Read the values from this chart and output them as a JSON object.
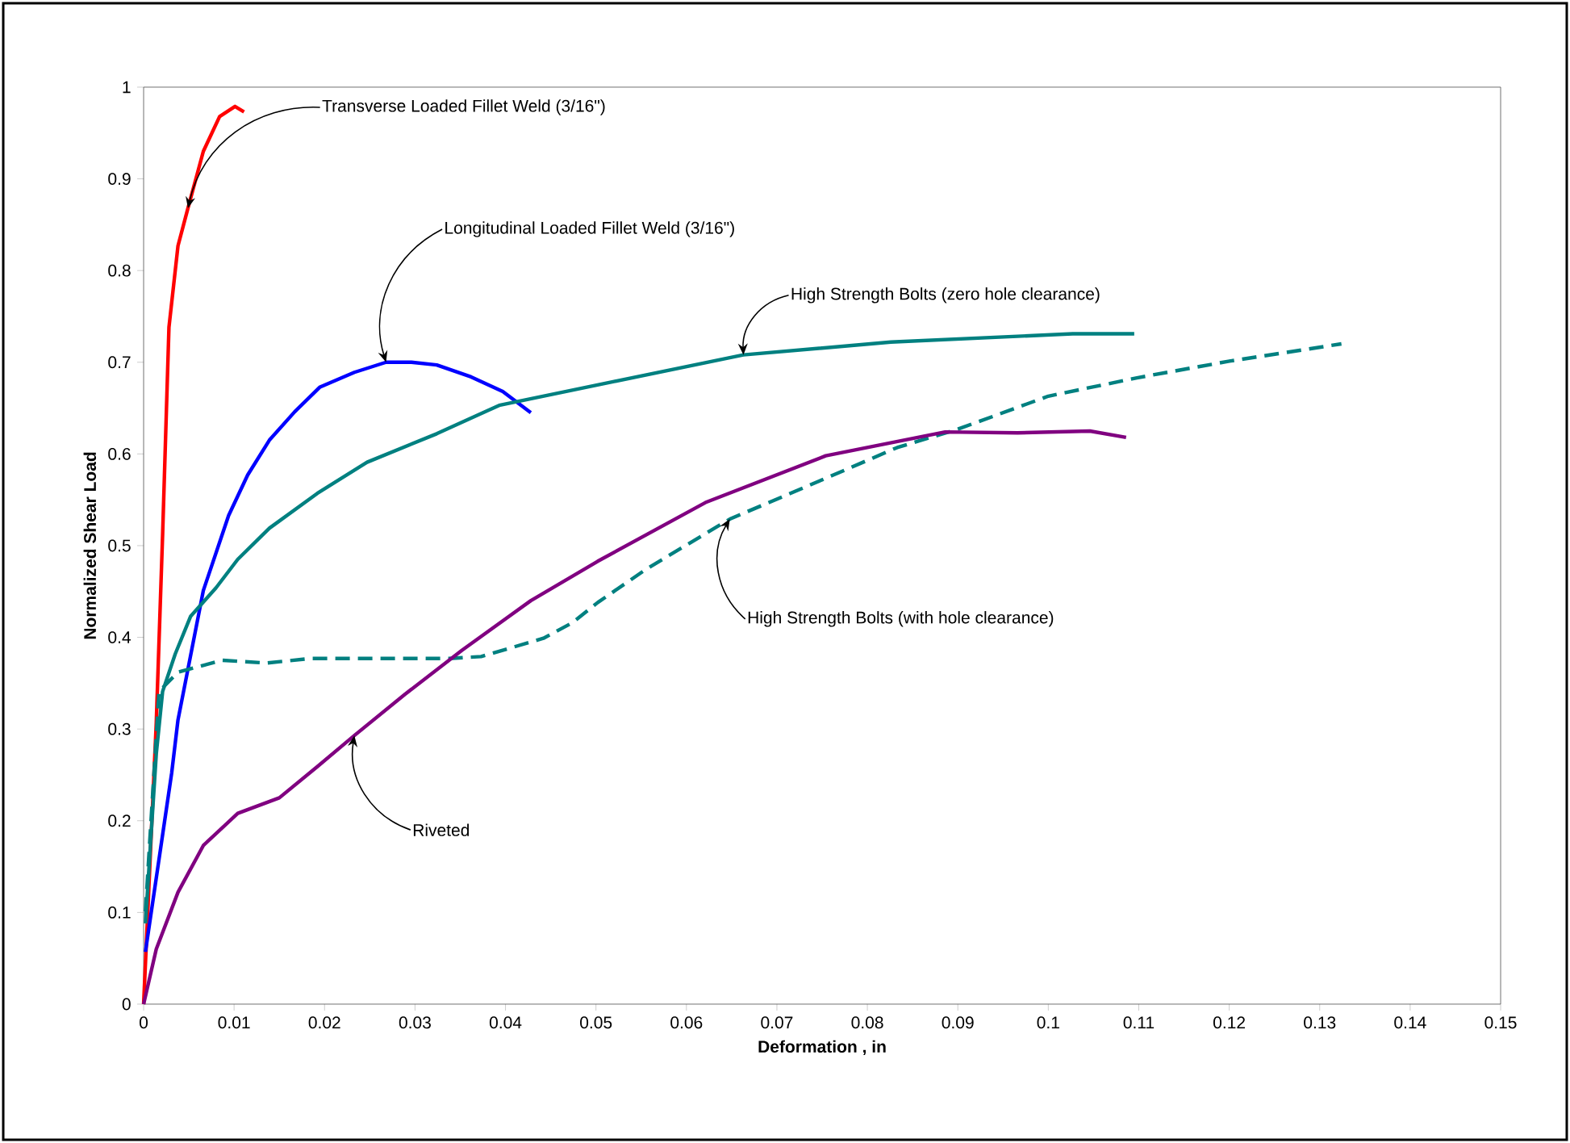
{
  "chart_data": {
    "type": "line",
    "xlabel": "Deformation , in",
    "ylabel": "Normalized Shear Load",
    "xlim": [
      0,
      0.15
    ],
    "ylim": [
      0,
      1
    ],
    "xticks": [
      0,
      0.01,
      0.02,
      0.03,
      0.04,
      0.05,
      0.06,
      0.07,
      0.08,
      0.09,
      0.1,
      0.11,
      0.12,
      0.13,
      0.14,
      0.15
    ],
    "yticks": [
      0,
      0.1,
      0.2,
      0.3,
      0.4,
      0.5,
      0.6,
      0.7,
      0.8,
      0.9,
      1
    ],
    "marker": "none",
    "series": [
      {
        "color": "#ff0000",
        "line_style": "solid",
        "x": [
          0,
          0.0014,
          0.0021,
          0.0028,
          0.0038,
          0.0049,
          0.0066,
          0.0084,
          0.0101,
          0.0111
        ],
        "values": [
          0,
          0.307,
          0.512,
          0.738,
          0.827,
          0.868,
          0.93,
          0.968,
          0.979,
          0.973
        ]
      },
      {
        "color": "#0000ff",
        "line_style": "solid",
        "x": [
          0.0002,
          0.0031,
          0.0038,
          0.0066,
          0.0094,
          0.0115,
          0.0139,
          0.0167,
          0.0195,
          0.0233,
          0.0268,
          0.0296,
          0.0324,
          0.0362,
          0.0397,
          0.0428
        ],
        "values": [
          0.057,
          0.252,
          0.31,
          0.451,
          0.533,
          0.577,
          0.615,
          0.646,
          0.673,
          0.689,
          0.7,
          0.7,
          0.697,
          0.684,
          0.668,
          0.645
        ]
      },
      {
        "color": "#008080",
        "line_style": "solid",
        "x": [
          0.0002,
          0.0014,
          0.0021,
          0.0035,
          0.0052,
          0.008,
          0.0104,
          0.0139,
          0.0192,
          0.0247,
          0.0324,
          0.0393,
          0.052,
          0.0663,
          0.0826,
          0.1027,
          0.1095
        ],
        "values": [
          0.088,
          0.273,
          0.341,
          0.382,
          0.423,
          0.454,
          0.485,
          0.519,
          0.557,
          0.591,
          0.622,
          0.653,
          0.679,
          0.708,
          0.722,
          0.731,
          0.731
        ]
      },
      {
        "color": "#008080",
        "line_style": "dashed",
        "x": [
          0.0002,
          0.0017,
          0.0038,
          0.0087,
          0.0136,
          0.0185,
          0.0261,
          0.0338,
          0.0373,
          0.0442,
          0.0474,
          0.0502,
          0.0555,
          0.0648,
          0.0734,
          0.0833,
          0.09,
          0.1,
          0.1098,
          0.1199,
          0.1324
        ],
        "values": [
          0.101,
          0.341,
          0.362,
          0.375,
          0.372,
          0.377,
          0.377,
          0.377,
          0.379,
          0.399,
          0.416,
          0.438,
          0.474,
          0.529,
          0.565,
          0.607,
          0.627,
          0.663,
          0.683,
          0.701,
          0.72
        ]
      },
      {
        "color": "#800080",
        "line_style": "solid",
        "x": [
          0,
          0.0014,
          0.0038,
          0.0066,
          0.0104,
          0.015,
          0.0192,
          0.0233,
          0.0289,
          0.0352,
          0.0428,
          0.0502,
          0.0621,
          0.0754,
          0.0886,
          0.0966,
          0.1046,
          0.1086
        ],
        "values": [
          0,
          0.06,
          0.122,
          0.173,
          0.208,
          0.225,
          0.259,
          0.293,
          0.338,
          0.386,
          0.44,
          0.483,
          0.547,
          0.598,
          0.624,
          0.623,
          0.625,
          0.618
        ]
      }
    ],
    "annotations": [
      {
        "text": "Transverse Loaded Fillet Weld (3/16\")",
        "x": 0.0049,
        "y": 0.868
      },
      {
        "text": "Longitudinal Loaded Fillet Weld (3/16\")",
        "x": 0.0268,
        "y": 0.7
      },
      {
        "text": "High Strength Bolts (zero hole clearance)",
        "x": 0.0663,
        "y": 0.708
      },
      {
        "text": "High Strength Bolts (with hole clearance)",
        "x": 0.0648,
        "y": 0.529
      },
      {
        "text": "Riveted",
        "x": 0.0233,
        "y": 0.293
      }
    ]
  }
}
